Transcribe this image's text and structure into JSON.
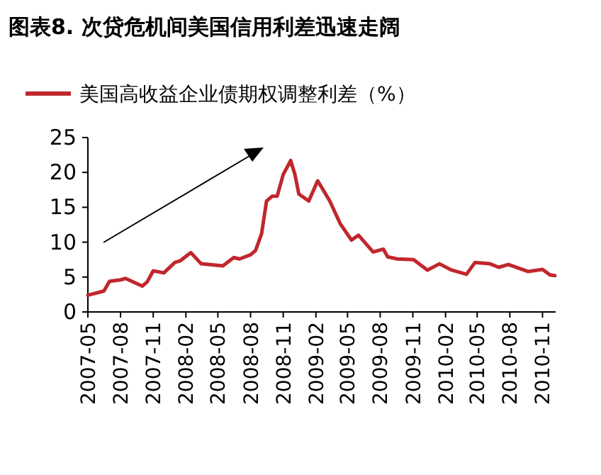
{
  "chart_data": {
    "type": "line",
    "title": "图表8.  次贷危机间美国信用利差迅速走阔",
    "legend": "top",
    "grid": false,
    "marker": "none",
    "line_style": "solid",
    "xlim": [
      "2007-05-01",
      "2010-12-08"
    ],
    "xticks": [
      "2007-05",
      "2007-08",
      "2007-11",
      "2008-02",
      "2008-05",
      "2008-08",
      "2008-11",
      "2009-02",
      "2009-05",
      "2009-08",
      "2009-11",
      "2010-02",
      "2010-05",
      "2010-08",
      "2010-11"
    ],
    "ylim": [
      0,
      25
    ],
    "yticks": [
      0,
      5,
      10,
      15,
      20,
      25
    ],
    "x": [
      "2007-05-01",
      "2007-06-15",
      "2007-07-01",
      "2007-08-01",
      "2007-08-15",
      "2007-10-01",
      "2007-10-15",
      "2007-11-01",
      "2007-12-01",
      "2008-01-01",
      "2008-01-15",
      "2008-02-15",
      "2008-03-15",
      "2008-05-15",
      "2008-06-15",
      "2008-07-01",
      "2008-08-01",
      "2008-08-15",
      "2008-09-01",
      "2008-09-15",
      "2008-10-01",
      "2008-10-15",
      "2008-11-01",
      "2008-11-22",
      "2008-12-04",
      "2008-12-15",
      "2009-01-12",
      "2009-02-06",
      "2009-03-12",
      "2009-04-10",
      "2009-05-12",
      "2009-06-01",
      "2009-07-12",
      "2009-08-10",
      "2009-08-22",
      "2009-09-18",
      "2009-11-03",
      "2009-12-12",
      "2010-01-15",
      "2010-02-18",
      "2010-04-01",
      "2010-04-25",
      "2010-06-06",
      "2010-07-01",
      "2010-07-28",
      "2010-09-21",
      "2010-11-01",
      "2010-11-22",
      "2010-12-06"
    ],
    "series": [
      {
        "name": "美国高收益企业债期权调整利差（%）",
        "color": "#c0272d",
        "values": [
          2.4,
          3.0,
          4.4,
          4.6,
          4.8,
          3.7,
          4.3,
          5.9,
          5.6,
          7.1,
          7.3,
          8.5,
          6.9,
          6.6,
          7.8,
          7.6,
          8.2,
          8.8,
          11.2,
          15.9,
          16.6,
          16.6,
          19.7,
          21.7,
          19.7,
          16.9,
          15.9,
          18.8,
          15.9,
          12.7,
          10.3,
          11.0,
          8.6,
          9.0,
          7.9,
          7.6,
          7.5,
          6.0,
          6.9,
          6.0,
          5.4,
          7.1,
          6.9,
          6.4,
          6.8,
          5.8,
          6.1,
          5.3,
          5.2
        ]
      }
    ]
  }
}
